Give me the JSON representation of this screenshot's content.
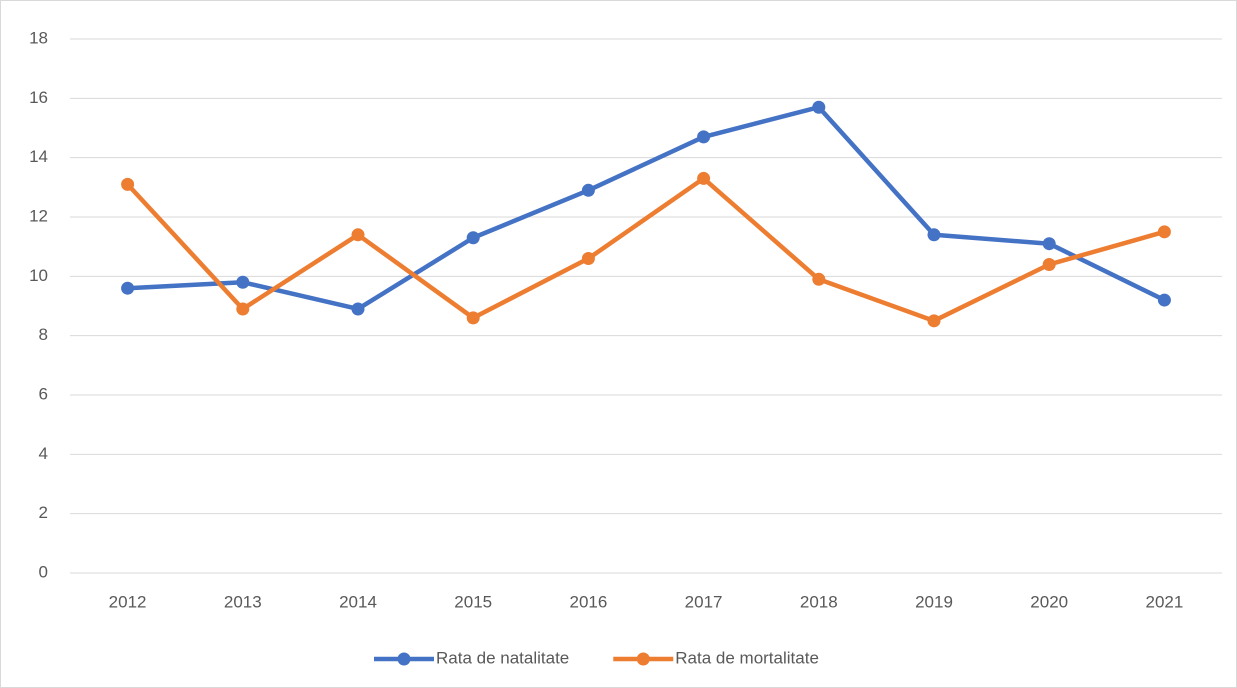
{
  "chart_data": {
    "type": "line",
    "categories": [
      "2012",
      "2013",
      "2014",
      "2015",
      "2016",
      "2017",
      "2018",
      "2019",
      "2020",
      "2021"
    ],
    "series": [
      {
        "name": "Rata de natalitate",
        "color": "#4472c4",
        "values": [
          9.6,
          9.8,
          8.9,
          11.3,
          12.9,
          14.7,
          15.7,
          11.4,
          11.1,
          9.2
        ]
      },
      {
        "name": "Rata de mortalitate",
        "color": "#ed7d31",
        "values": [
          13.1,
          8.9,
          11.4,
          8.6,
          10.6,
          13.3,
          9.9,
          8.5,
          10.4,
          11.5
        ]
      }
    ],
    "ylim": [
      0,
      18
    ],
    "yticks": [
      0,
      2,
      4,
      6,
      8,
      10,
      12,
      14,
      16,
      18
    ],
    "grid": true,
    "legend": "bottom"
  }
}
